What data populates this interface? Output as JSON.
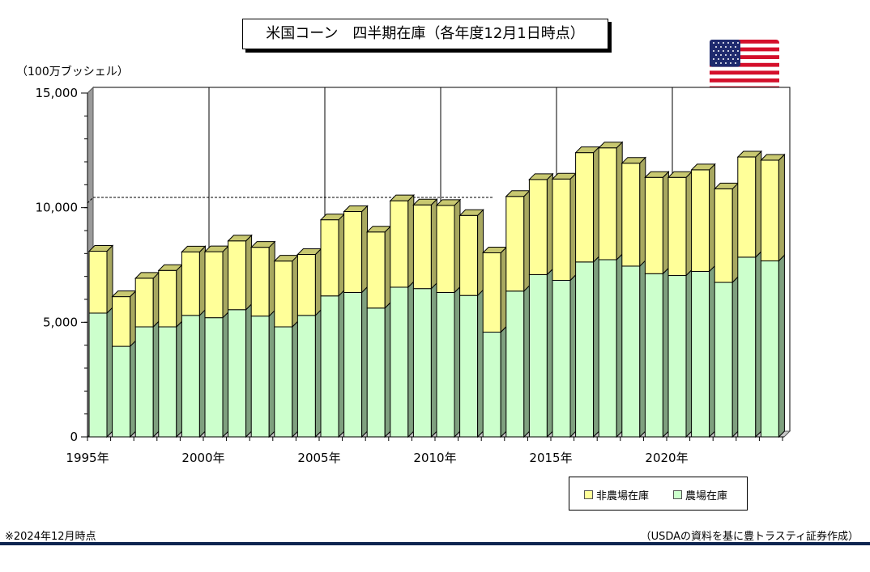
{
  "title": "米国コーン　四半期在庫（各年度12月1日時点）",
  "unit_label": "（100万ブッシェル）",
  "note": "※2024年12月時点",
  "source": "（USDAの資料を基に豊トラスティ証券作成）",
  "colors": {
    "on_farm": "#ccffcc",
    "off_farm": "#ffff99",
    "dashed_line": "#000000",
    "bottom_bar": "#0e2550"
  },
  "flag_icon": "us-flag-icon",
  "chart_data": {
    "type": "bar",
    "stacked": true,
    "title": "米国コーン　四半期在庫（各年度12月1日時点）",
    "ylabel": "（100万ブッシェル）",
    "ylim": [
      0,
      15000
    ],
    "yticks": [
      0,
      5000,
      10000,
      15000
    ],
    "ytick_labels": [
      "0",
      "5,000",
      "10,000",
      "15,000"
    ],
    "x": [
      1995,
      1996,
      1997,
      1998,
      1999,
      2000,
      2001,
      2002,
      2003,
      2004,
      2005,
      2006,
      2007,
      2008,
      2009,
      2010,
      2011,
      2012,
      2013,
      2014,
      2015,
      2016,
      2017,
      2018,
      2019,
      2020,
      2021,
      2022,
      2023,
      2024
    ],
    "xtick_labels": [
      {
        "year": 1995,
        "label": "1995年"
      },
      {
        "year": 2000,
        "label": "2000年"
      },
      {
        "year": 2005,
        "label": "2005年"
      },
      {
        "year": 2010,
        "label": "2010年"
      },
      {
        "year": 2015,
        "label": "2015年"
      },
      {
        "year": 2020,
        "label": "2020年"
      }
    ],
    "series": [
      {
        "name": "農場在庫",
        "values": [
          5400,
          3950,
          4800,
          4800,
          5300,
          5200,
          5550,
          5270,
          4800,
          5300,
          6150,
          6300,
          5620,
          6530,
          6470,
          6300,
          6170,
          4570,
          6360,
          7080,
          6830,
          7630,
          7730,
          7450,
          7120,
          7040,
          7220,
          6740,
          7840,
          7680
        ]
      },
      {
        "name": "非農場在庫",
        "values": [
          2700,
          2170,
          2120,
          2460,
          2770,
          2880,
          3000,
          3000,
          2870,
          2660,
          3320,
          3530,
          3320,
          3770,
          3650,
          3800,
          3490,
          3460,
          4130,
          4150,
          4420,
          4770,
          4880,
          4490,
          4200,
          4280,
          4430,
          4080,
          4370,
          4390
        ]
      }
    ],
    "reference_line": 10200,
    "grid": {
      "vertical_at_years": [
        2000,
        2005,
        2010,
        2015,
        2020
      ],
      "horizontal": false
    },
    "legend": {
      "position": "bottom-right",
      "entries": [
        {
          "label": "非農場在庫",
          "color": "#ffff99"
        },
        {
          "label": "農場在庫",
          "color": "#ccffcc"
        }
      ]
    }
  }
}
